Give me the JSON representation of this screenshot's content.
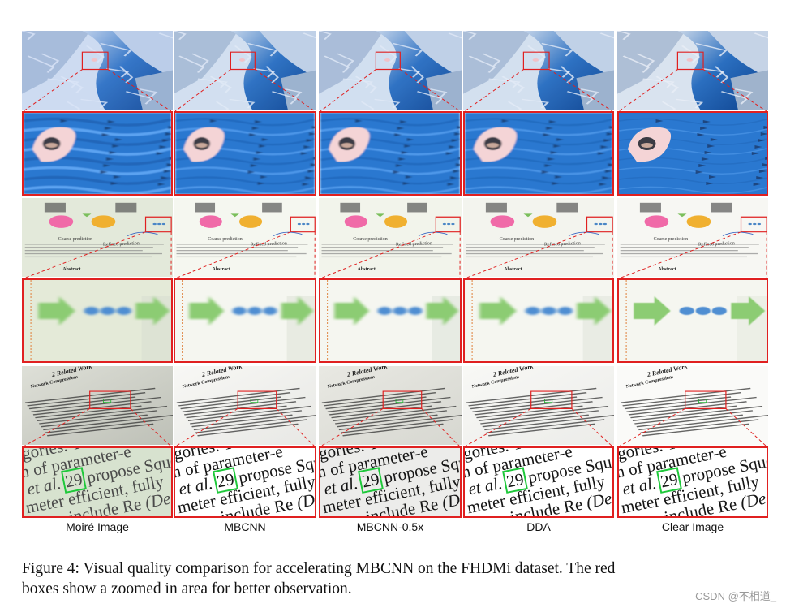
{
  "columns": [
    {
      "label": "Moiré Image"
    },
    {
      "label": "MBCNN"
    },
    {
      "label": "MBCNN-0.5x"
    },
    {
      "label": "DDA"
    },
    {
      "label": "Clear Image"
    }
  ],
  "rows": [
    {
      "type": "ocean-image"
    },
    {
      "type": "ocean-zoom"
    },
    {
      "type": "paper-figure-image",
      "texts": {
        "coarse": "Coarse prediction",
        "refined": "Refined prediction",
        "abstract": "Abstract"
      }
    },
    {
      "type": "paper-figure-zoom"
    },
    {
      "type": "paper-text-image",
      "texts": {
        "heading": "2   Related Work",
        "bold": "Network Compression:"
      }
    },
    {
      "type": "paper-text-zoom",
      "texts": {
        "line1": "gories. T",
        "line2": "n of parameter-e",
        "line3": "et al.",
        "cite": "29",
        "line3b": "propose Sque",
        "line4": "meter efficient, fully",
        "line5": "include Re",
        "line5b": "(De"
      }
    }
  ],
  "caption": {
    "line1": "Figure 4:   Visual quality comparison for accelerating MBCNN on the FHDMi dataset.  The red",
    "line2": "boxes show a zoomed in area for better observation."
  },
  "watermark": "CSDN @不相道_"
}
